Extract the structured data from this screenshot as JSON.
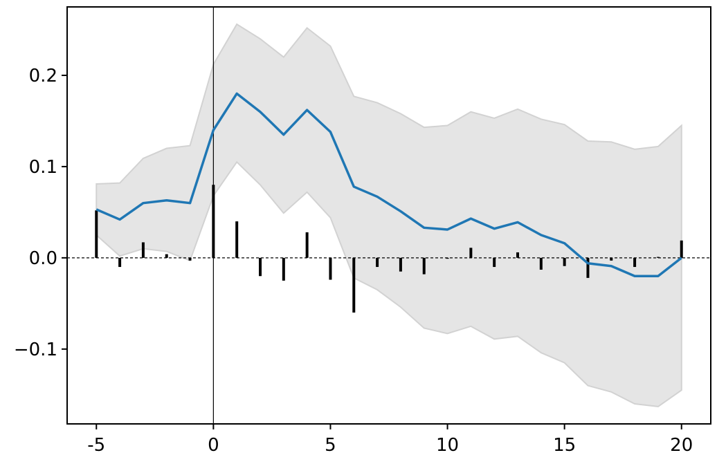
{
  "chart_data": {
    "type": "line",
    "title": "",
    "xlabel": "",
    "ylabel": "",
    "xlim": [
      -6.25,
      21.25
    ],
    "ylim": [
      -0.182,
      0.275
    ],
    "x_ticks": [
      {
        "value": -5,
        "label": "-5"
      },
      {
        "value": 0,
        "label": "0"
      },
      {
        "value": 5,
        "label": "5"
      },
      {
        "value": 10,
        "label": "10"
      },
      {
        "value": 15,
        "label": "15"
      },
      {
        "value": 20,
        "label": "20"
      }
    ],
    "y_ticks": [
      {
        "value": 0.2,
        "label": "0.2"
      },
      {
        "value": 0.1,
        "label": "0.1"
      },
      {
        "value": 0.0,
        "label": "0.0"
      },
      {
        "value": -0.1,
        "label": "−0.1"
      }
    ],
    "grid": false,
    "reference_lines": {
      "horizontal_y": 0,
      "vertical_x": 0
    },
    "x": [
      -5,
      -4,
      -3,
      -2,
      -1,
      0,
      1,
      2,
      3,
      4,
      5,
      6,
      7,
      8,
      9,
      10,
      11,
      12,
      13,
      14,
      15,
      16,
      17,
      18,
      19,
      20
    ],
    "series": [
      {
        "kind": "line",
        "color": "#1f77b4",
        "values": [
          0.053,
          0.042,
          0.06,
          0.063,
          0.06,
          0.14,
          0.18,
          0.16,
          0.135,
          0.162,
          0.138,
          0.078,
          0.067,
          0.051,
          0.033,
          0.031,
          0.043,
          0.032,
          0.039,
          0.025,
          0.016,
          -0.006,
          -0.009,
          -0.02,
          -0.02,
          0.0
        ]
      },
      {
        "kind": "band",
        "color": "#bbbbbb",
        "upper": [
          0.081,
          0.082,
          0.109,
          0.12,
          0.123,
          0.212,
          0.256,
          0.24,
          0.22,
          0.252,
          0.232,
          0.177,
          0.17,
          0.158,
          0.143,
          0.145,
          0.16,
          0.153,
          0.163,
          0.152,
          0.146,
          0.128,
          0.127,
          0.119,
          0.122,
          0.145
        ],
        "lower": [
          0.025,
          0.002,
          0.01,
          0.007,
          -0.003,
          0.068,
          0.105,
          0.08,
          0.049,
          0.072,
          0.044,
          -0.022,
          -0.035,
          -0.054,
          -0.077,
          -0.083,
          -0.075,
          -0.089,
          -0.086,
          -0.104,
          -0.115,
          -0.14,
          -0.147,
          -0.16,
          -0.163,
          -0.145
        ]
      },
      {
        "kind": "stem",
        "color": "#000000",
        "values": [
          0.052,
          -0.01,
          0.017,
          0.004,
          -0.003,
          0.08,
          0.04,
          -0.02,
          -0.025,
          0.028,
          -0.024,
          -0.06,
          -0.01,
          -0.015,
          -0.018,
          -0.001,
          0.011,
          -0.01,
          0.006,
          -0.013,
          -0.009,
          -0.022,
          -0.003,
          -0.01,
          0.001,
          0.019
        ]
      }
    ]
  }
}
